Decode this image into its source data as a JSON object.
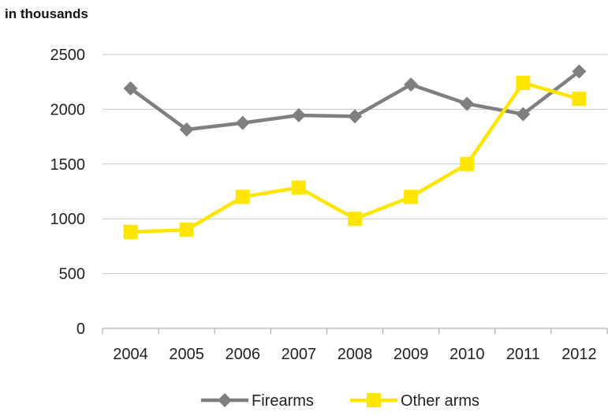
{
  "unit_label": "in thousands",
  "chart_data": {
    "type": "line",
    "title": "",
    "xlabel": "",
    "ylabel": "in thousands",
    "x": [
      "2004",
      "2005",
      "2006",
      "2007",
      "2008",
      "2009",
      "2010",
      "2011",
      "2012"
    ],
    "ylim": [
      0,
      2500
    ],
    "yticks": [
      0,
      500,
      1000,
      1500,
      2000,
      2500
    ],
    "grid": true,
    "legend_position": "bottom",
    "series": [
      {
        "name": "Firearms",
        "color": "#7f7f7f",
        "marker": "diamond",
        "values": [
          2190,
          1815,
          1875,
          1945,
          1935,
          2225,
          2050,
          1955,
          2345
        ]
      },
      {
        "name": "Other arms",
        "color": "#ffe600",
        "marker": "square",
        "values": [
          880,
          900,
          1200,
          1285,
          1000,
          1200,
          1500,
          2240,
          2095
        ]
      }
    ]
  }
}
